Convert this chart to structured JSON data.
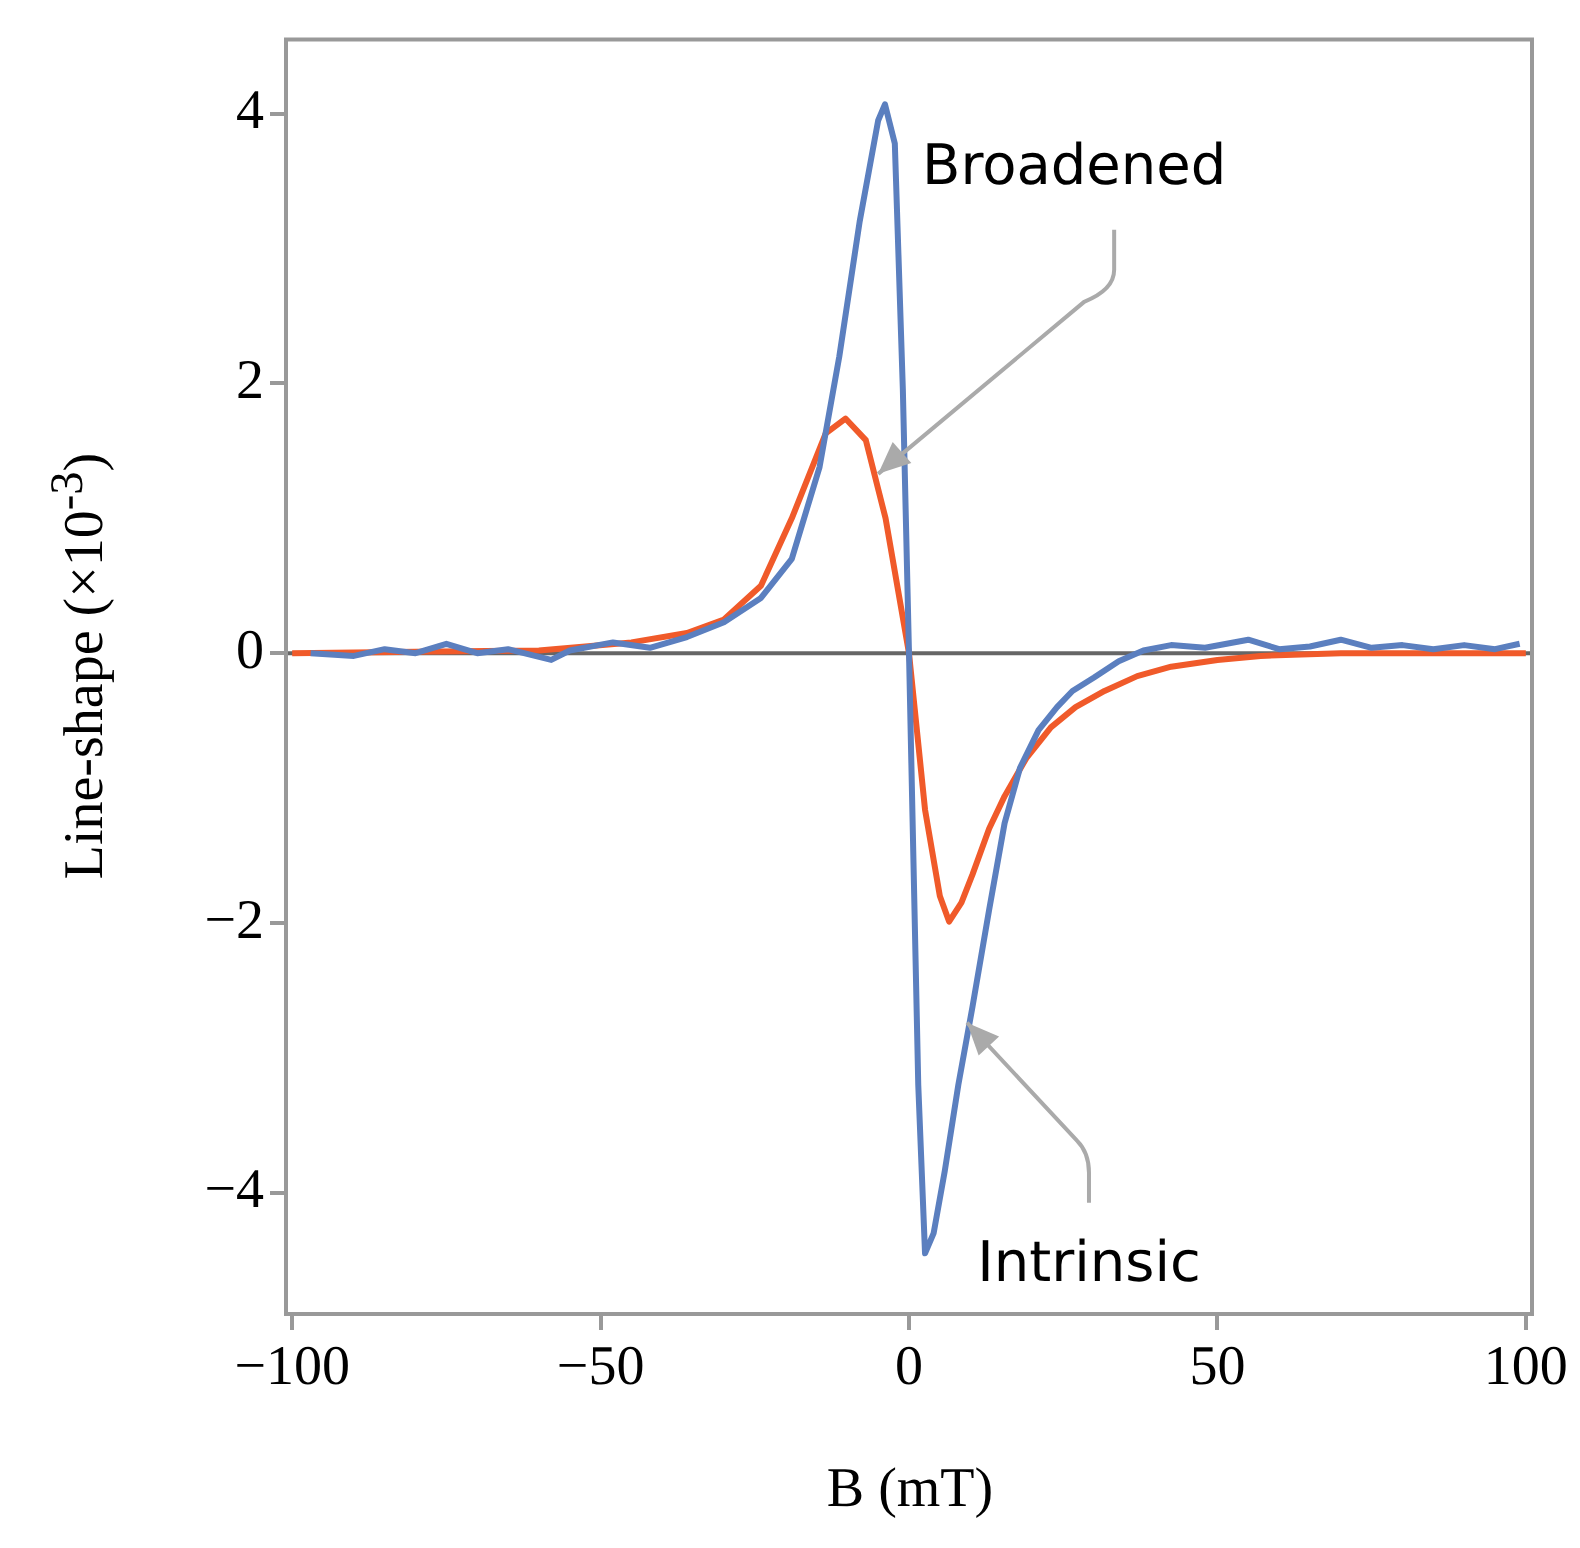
{
  "chart_data": {
    "type": "line",
    "xlabel": "B (mT)",
    "ylabel": "Line-shape (×10$^{-3}$)",
    "xlim": [
      -101,
      101
    ],
    "xticks": [
      -100,
      -50,
      0,
      50,
      100
    ],
    "ylim": [
      -4.9,
      4.55
    ],
    "yticks": [
      -4,
      -2,
      0,
      2,
      4
    ],
    "grid": false,
    "legend": false,
    "marker": "none",
    "line_style": "solid",
    "series": [
      {
        "color": "#5b7fbf",
        "x": [
          -97,
          -90,
          -85,
          -80,
          -75,
          -70,
          -65,
          -58,
          -55,
          -48,
          -42,
          -36,
          -30,
          -24,
          -19,
          -14.5,
          -11.3,
          -8,
          -5,
          -3.9,
          -2.3,
          -1,
          0,
          1.5,
          2.6,
          4,
          5.8,
          8,
          10.3,
          13,
          15.5,
          18,
          21,
          24,
          26.5,
          30,
          34,
          38,
          42.5,
          48,
          55,
          60,
          65,
          70,
          75,
          80,
          85,
          90,
          95,
          99
        ],
        "values": [
          0,
          -0.02,
          0.03,
          0,
          0.07,
          0,
          0.03,
          -0.05,
          0.02,
          0.08,
          0.04,
          0.12,
          0.23,
          0.41,
          0.7,
          1.38,
          2.2,
          3.2,
          3.95,
          4.07,
          3.78,
          1.96,
          0,
          -3.2,
          -4.45,
          -4.3,
          -3.84,
          -3.2,
          -2.62,
          -1.9,
          -1.26,
          -0.85,
          -0.57,
          -0.4,
          -0.28,
          -0.18,
          -0.06,
          0.02,
          0.06,
          0.04,
          0.1,
          0.03,
          0.05,
          0.1,
          0.04,
          0.06,
          0.03,
          0.06,
          0.03,
          0.07
        ]
      },
      {
        "color": "#f05a2a",
        "x": [
          -100,
          -80,
          -60,
          -45,
          -36,
          -30,
          -24,
          -19,
          -13.5,
          -10.3,
          -7,
          -3.8,
          0,
          2.6,
          5,
          6.5,
          8.5,
          10.3,
          13,
          15.5,
          19,
          23,
          27,
          31.7,
          37,
          42.5,
          50,
          57,
          70,
          85,
          100
        ],
        "values": [
          0,
          0.01,
          0.02,
          0.08,
          0.15,
          0.25,
          0.5,
          1.0,
          1.63,
          1.74,
          1.58,
          1.0,
          0,
          -1.16,
          -1.8,
          -1.99,
          -1.85,
          -1.64,
          -1.3,
          -1.06,
          -0.78,
          -0.55,
          -0.4,
          -0.28,
          -0.17,
          -0.1,
          -0.05,
          -0.02,
          0,
          0,
          0
        ]
      }
    ],
    "ref_lines": [
      {
        "axis": "y",
        "value": 0,
        "color": "#666666"
      }
    ],
    "annotations": [
      {
        "text": "Broadened",
        "x": -5,
        "y": 1.33
      },
      {
        "text": "Intrinsic",
        "x": 9.4,
        "y": -2.74
      }
    ]
  }
}
